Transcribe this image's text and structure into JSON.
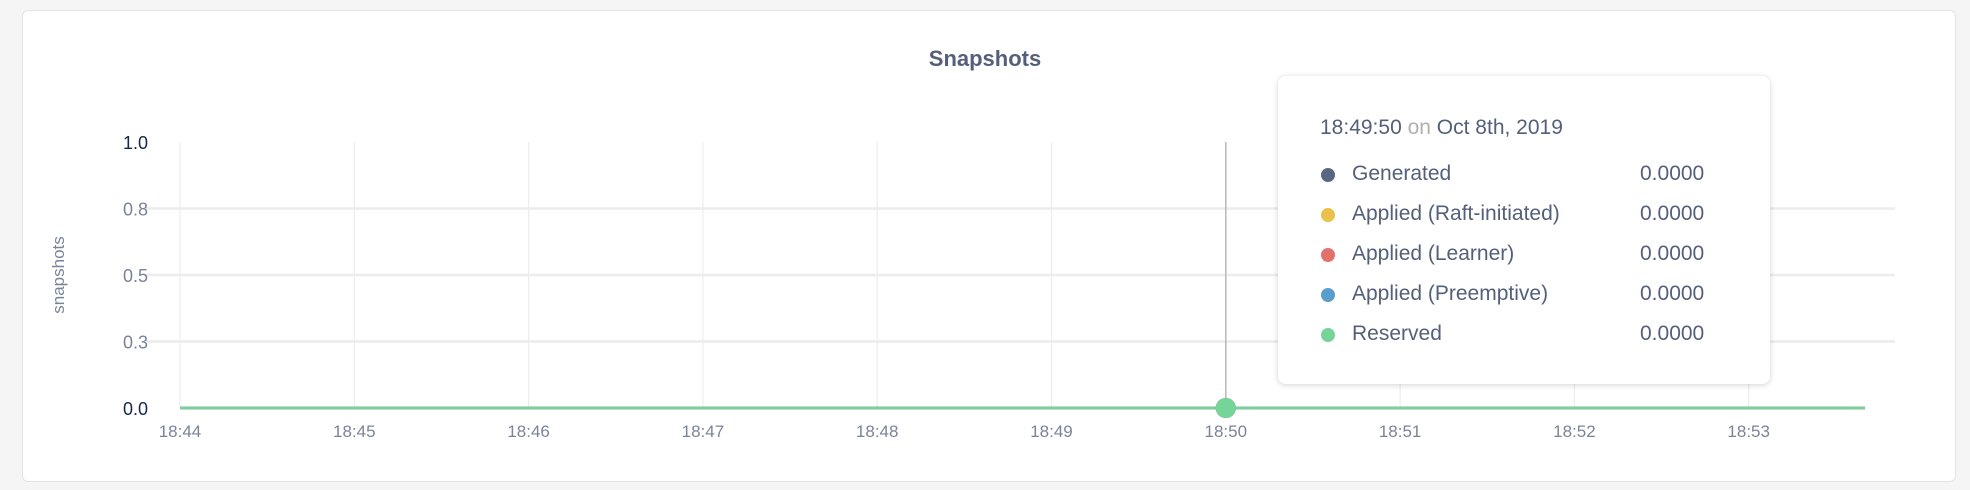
{
  "chart_data": {
    "type": "line",
    "title": "Snapshots",
    "ylabel": "snapshots",
    "xlabel": "",
    "ylim": [
      0,
      1
    ],
    "xlim": [
      "18:44",
      "18:53:40"
    ],
    "y_ticks": [
      {
        "value": 1.0,
        "label": "1.0"
      },
      {
        "value": 0.75,
        "label": "0.8"
      },
      {
        "value": 0.5,
        "label": "0.5"
      },
      {
        "value": 0.25,
        "label": "0.3"
      },
      {
        "value": 0.0,
        "label": "0.0"
      }
    ],
    "x_ticks": [
      "18:44",
      "18:45",
      "18:46",
      "18:47",
      "18:48",
      "18:49",
      "18:50",
      "18:51",
      "18:52",
      "18:53"
    ],
    "grid": true,
    "series": [
      {
        "name": "Generated",
        "color": "#5a6783",
        "x": [
          "18:44",
          "18:53:40"
        ],
        "values": [
          0,
          0
        ]
      },
      {
        "name": "Applied (Raft-initiated)",
        "color": "#ebc04b",
        "x": [
          "18:44",
          "18:53:40"
        ],
        "values": [
          0,
          0
        ]
      },
      {
        "name": "Applied (Learner)",
        "color": "#e3716b",
        "x": [
          "18:44",
          "18:53:40"
        ],
        "values": [
          0,
          0
        ]
      },
      {
        "name": "Applied (Preemptive)",
        "color": "#5b9ccf",
        "x": [
          "18:44",
          "18:53:40"
        ],
        "values": [
          0,
          0
        ]
      },
      {
        "name": "Reserved",
        "color": "#75d597",
        "x": [
          "18:44",
          "18:53:40"
        ],
        "values": [
          0,
          0
        ]
      }
    ],
    "hover_x": "18:50"
  },
  "tooltip": {
    "time": "18:49:50",
    "on": "on",
    "date": "Oct 8th, 2019",
    "rows": [
      {
        "label": "Generated",
        "value": "0.0000",
        "color": "#5a6783"
      },
      {
        "label": "Applied (Raft-initiated)",
        "value": "0.0000",
        "color": "#ebc04b"
      },
      {
        "label": "Applied (Learner)",
        "value": "0.0000",
        "color": "#e3716b"
      },
      {
        "label": "Applied (Preemptive)",
        "value": "0.0000",
        "color": "#5b9ccf"
      },
      {
        "label": "Reserved",
        "value": "0.0000",
        "color": "#75d597"
      }
    ]
  }
}
